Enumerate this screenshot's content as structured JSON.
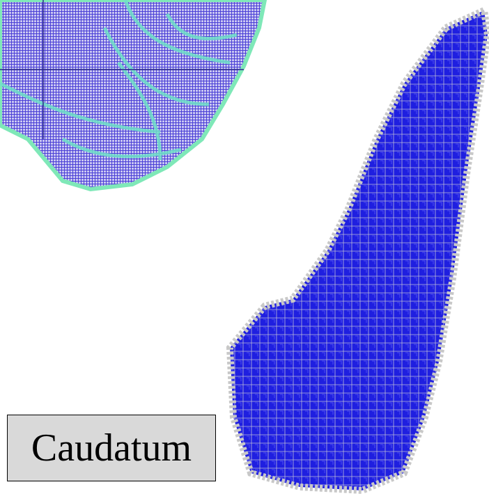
{
  "label": "Caudatum"
}
